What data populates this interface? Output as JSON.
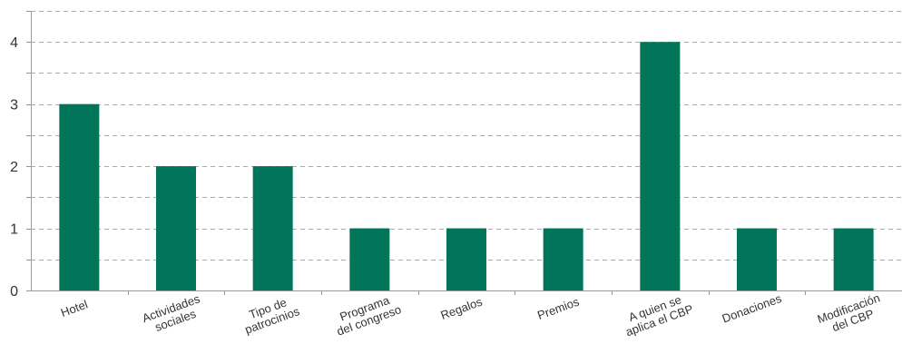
{
  "chart_data": {
    "type": "bar",
    "title": "",
    "xlabel": "",
    "ylabel": "",
    "ylim": [
      0,
      4.5
    ],
    "yticks": [
      "0",
      "1",
      "2",
      "3",
      "4"
    ],
    "grid": true,
    "categories": [
      [
        "Hotel"
      ],
      [
        "Actividades",
        "sociales"
      ],
      [
        "Tipo de",
        "patrocinios"
      ],
      [
        "Programa",
        "del congreso"
      ],
      [
        "Regalos"
      ],
      [
        "Premios"
      ],
      [
        "A quien se",
        "aplica el CBP"
      ],
      [
        "Donaciones"
      ],
      [
        "Modificación",
        "del CBP"
      ]
    ],
    "values": [
      3,
      2,
      2,
      1,
      1,
      1,
      4,
      1,
      1
    ],
    "colors": {
      "bar": "#00755A",
      "grid": "#AAAAAA",
      "axis": "#999999",
      "text": "#333333"
    }
  }
}
